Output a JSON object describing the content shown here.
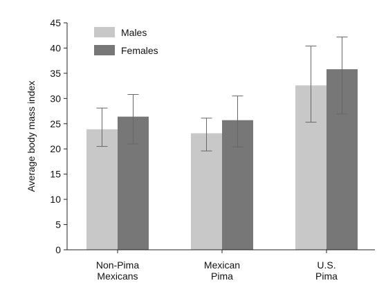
{
  "chart_data": {
    "type": "bar",
    "title": "",
    "xlabel": "",
    "ylabel": "Average body mass index",
    "ylim": [
      0,
      45
    ],
    "yticks": [
      0,
      5,
      10,
      15,
      20,
      25,
      30,
      35,
      40,
      45
    ],
    "grid": false,
    "legend_position": "top-left",
    "categories": [
      [
        "Non-Pima",
        "Mexicans"
      ],
      [
        "Mexican",
        "Pima"
      ],
      [
        "U.S.",
        "Pima"
      ]
    ],
    "series": [
      {
        "name": "Males",
        "color": "#c8c8c8",
        "values": [
          23.9,
          23.1,
          32.6
        ],
        "error_low": [
          20.5,
          19.6,
          25.3
        ],
        "error_high": [
          28.1,
          26.1,
          40.4
        ]
      },
      {
        "name": "Females",
        "color": "#777777",
        "values": [
          26.4,
          25.7,
          35.8
        ],
        "error_low": [
          21.0,
          20.4,
          26.9
        ],
        "error_high": [
          30.8,
          30.5,
          42.2
        ]
      }
    ]
  }
}
